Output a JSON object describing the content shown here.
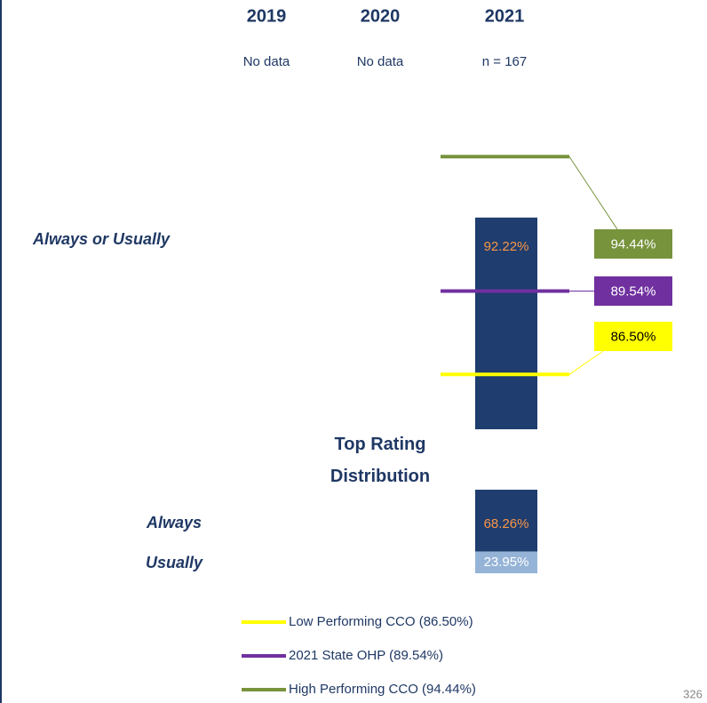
{
  "chart_data": {
    "type": "bar",
    "columns": [
      {
        "year": "2019",
        "n": "No data"
      },
      {
        "year": "2020",
        "n": "No data"
      },
      {
        "year": "2021",
        "n": "n = 167"
      }
    ],
    "row_label": "Always or Usually",
    "values": [
      92.22
    ],
    "value_labels": [
      "92.22%"
    ],
    "color": "#1f3d6e",
    "label_color": "#f79646",
    "ylim": [
      84.5,
      95
    ],
    "benchmarks": [
      {
        "name": "Low Performing CCO (86.50%)",
        "value": 86.5,
        "value_label": "86.50%",
        "color": "#ffff00"
      },
      {
        "name": "2021 State OHP (89.54%)",
        "value": 89.54,
        "value_label": "89.54%",
        "color": "#7030a0"
      },
      {
        "name": "High Performing CCO (94.44%)",
        "value": 94.44,
        "value_label": "94.44%",
        "color": "#77933c"
      }
    ],
    "distribution": {
      "title": "Top Rating Distribution",
      "categories": [
        "Always",
        "Usually"
      ],
      "values": [
        68.26,
        23.95
      ],
      "value_labels": [
        "68.26%",
        "23.95%"
      ],
      "colors": [
        "#1f3d6e",
        "#95b3d7"
      ],
      "ylim": [
        0,
        100
      ]
    },
    "page_number": "326"
  }
}
